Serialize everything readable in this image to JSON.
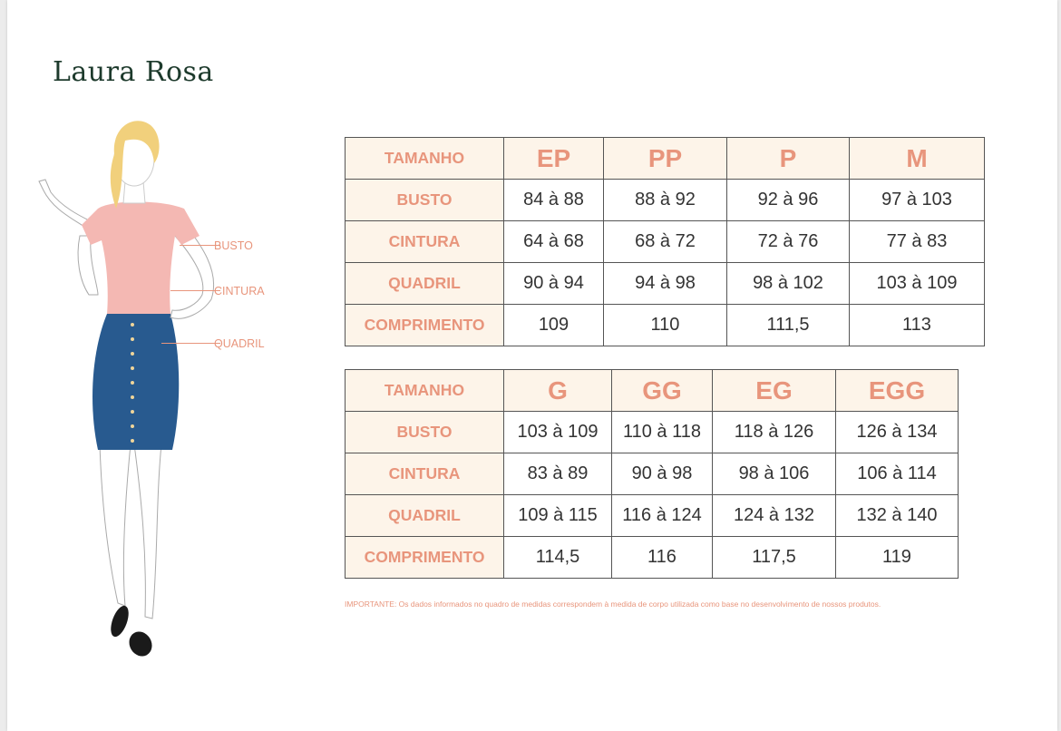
{
  "brand": {
    "name": "Laura Rosa"
  },
  "figure_labels": {
    "busto": "BUSTO",
    "cintura": "CINTURA",
    "quadril": "QUADRIL"
  },
  "table1": {
    "header_label": "TAMANHO",
    "sizes": [
      "EP",
      "PP",
      "P",
      "M"
    ],
    "rows": [
      {
        "label": "BUSTO",
        "values": [
          "84 à 88",
          "88 à 92",
          "92 à 96",
          "97 à 103"
        ]
      },
      {
        "label": "CINTURA",
        "values": [
          "64 à 68",
          "68 à 72",
          "72 à 76",
          "77 à 83"
        ]
      },
      {
        "label": "QUADRIL",
        "values": [
          "90 à 94",
          "94 à 98",
          "98 à 102",
          "103 à 109"
        ]
      },
      {
        "label": "COMPRIMENTO",
        "values": [
          "109",
          "110",
          "111,5",
          "113"
        ]
      }
    ]
  },
  "table2": {
    "header_label": "TAMANHO",
    "sizes": [
      "G",
      "GG",
      "EG",
      "EGG"
    ],
    "rows": [
      {
        "label": "BUSTO",
        "values": [
          "103 à 109",
          "110 à 118",
          "118 à 126",
          "126 à 134"
        ]
      },
      {
        "label": "CINTURA",
        "values": [
          "83 à 89",
          "90 à 98",
          "98 à 106",
          "106 à 114"
        ]
      },
      {
        "label": "QUADRIL",
        "values": [
          "109 à 115",
          "116 à 124",
          "124 à 132",
          "132 à 140"
        ]
      },
      {
        "label": "COMPRIMENTO",
        "values": [
          "114,5",
          "116",
          "117,5",
          "119"
        ]
      }
    ]
  },
  "note": "IMPORTANTE: Os dados informados no quadro de medidas correspondem à medida de corpo utilizada como base no desenvolvimento de nossos produtos.",
  "colors": {
    "accent": "#e8957c",
    "header_bg": "#fdf4e9",
    "logo": "#1d3a2c",
    "blouse": "#f4b8b3",
    "skirt": "#285a8f",
    "hair": "#f1d07c"
  }
}
